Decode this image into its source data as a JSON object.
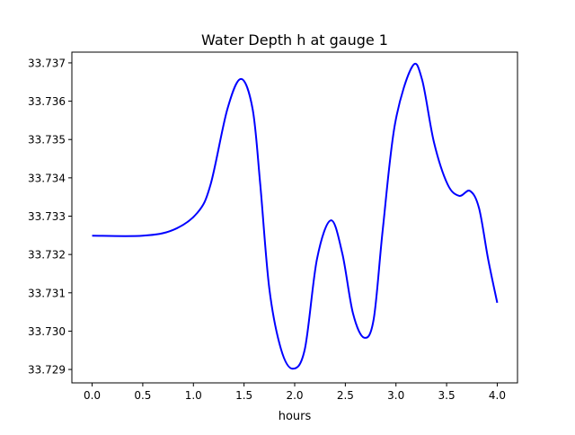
{
  "chart_data": {
    "type": "line",
    "title": "Water Depth h at gauge 1",
    "xlabel": "hours",
    "ylabel": "",
    "xlim": [
      -0.2,
      4.2
    ],
    "ylim": [
      33.72865,
      33.73728
    ],
    "grid": false,
    "xticks": [
      0.0,
      0.5,
      1.0,
      1.5,
      2.0,
      2.5,
      3.0,
      3.5,
      4.0
    ],
    "xtick_labels": [
      "0.0",
      "0.5",
      "1.0",
      "1.5",
      "2.0",
      "2.5",
      "3.0",
      "3.5",
      "4.0"
    ],
    "yticks": [
      33.729,
      33.73,
      33.731,
      33.732,
      33.733,
      33.734,
      33.735,
      33.736,
      33.737
    ],
    "ytick_labels": [
      "33.729",
      "33.730",
      "33.731",
      "33.732",
      "33.733",
      "33.734",
      "33.735",
      "33.736",
      "33.737"
    ],
    "series": [
      {
        "name": "h",
        "color": "#0000ff",
        "x": [
          0.0,
          0.5,
          0.8,
          1.04,
          1.17,
          1.335,
          1.47,
          1.585,
          1.66,
          1.75,
          1.865,
          1.98,
          2.1,
          2.22,
          2.357,
          2.47,
          2.575,
          2.685,
          2.78,
          2.87,
          2.99,
          3.16,
          3.257,
          3.375,
          3.51,
          3.625,
          3.73,
          3.82,
          3.91,
          4.0
        ],
        "y": [
          33.73249,
          33.73249,
          33.73264,
          33.73309,
          33.73383,
          33.73579,
          33.73658,
          33.73579,
          33.73383,
          33.7311,
          33.72953,
          33.72902,
          33.72953,
          33.73188,
          33.73289,
          33.73203,
          33.73047,
          33.72983,
          33.73031,
          33.73266,
          33.7354,
          33.7369,
          33.73657,
          33.73493,
          33.73383,
          33.73353,
          33.73366,
          33.73321,
          33.73188,
          33.73074
        ]
      }
    ]
  }
}
